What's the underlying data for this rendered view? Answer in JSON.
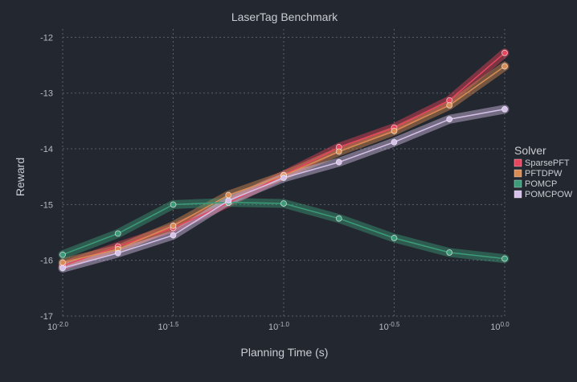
{
  "chart_data": {
    "type": "line",
    "title": "LaserTag Benchmark",
    "xlabel": "Planning Time (s)",
    "ylabel": "Reward",
    "x_scale": "log",
    "x": [
      -2.0,
      -1.75,
      -1.5,
      -1.25,
      -1.0,
      -0.75,
      -0.5,
      -0.25,
      0.0
    ],
    "x_tick_labels": [
      {
        "base": "10",
        "exp": "-2.0"
      },
      {
        "base": "10",
        "exp": "-1.5"
      },
      {
        "base": "10",
        "exp": "-1.0"
      },
      {
        "base": "10",
        "exp": "-0.5"
      },
      {
        "base": "10",
        "exp": "0.0"
      }
    ],
    "x_tick_values": [
      -2.0,
      -1.5,
      -1.0,
      -0.5,
      0.0
    ],
    "y_tick_values": [
      -12,
      -13,
      -14,
      -15,
      -16,
      -17
    ],
    "ylim": [
      -17,
      -11.85
    ],
    "xlim": [
      -2.0,
      0.0
    ],
    "grid": true,
    "legend": {
      "title": "Solver",
      "placement": "right"
    },
    "series": [
      {
        "name": "SparsePFT",
        "color": "#e8455e",
        "values": [
          -16.1,
          -15.75,
          -15.42,
          -14.97,
          -14.47,
          -13.97,
          -13.62,
          -13.13,
          -12.28
        ]
      },
      {
        "name": "PFTDPW",
        "color": "#d98d55",
        "values": [
          -16.04,
          -15.8,
          -15.38,
          -14.83,
          -14.48,
          -14.05,
          -13.68,
          -13.22,
          -12.52
        ]
      },
      {
        "name": "POMCP",
        "color": "#3c9b78",
        "values": [
          -15.9,
          -15.52,
          -15.0,
          -14.96,
          -14.98,
          -15.25,
          -15.6,
          -15.86,
          -15.97
        ]
      },
      {
        "name": "POMCPOW",
        "color": "#d6c1ea",
        "values": [
          -16.14,
          -15.87,
          -15.55,
          -14.93,
          -14.52,
          -14.24,
          -13.88,
          -13.47,
          -13.29
        ]
      }
    ]
  }
}
